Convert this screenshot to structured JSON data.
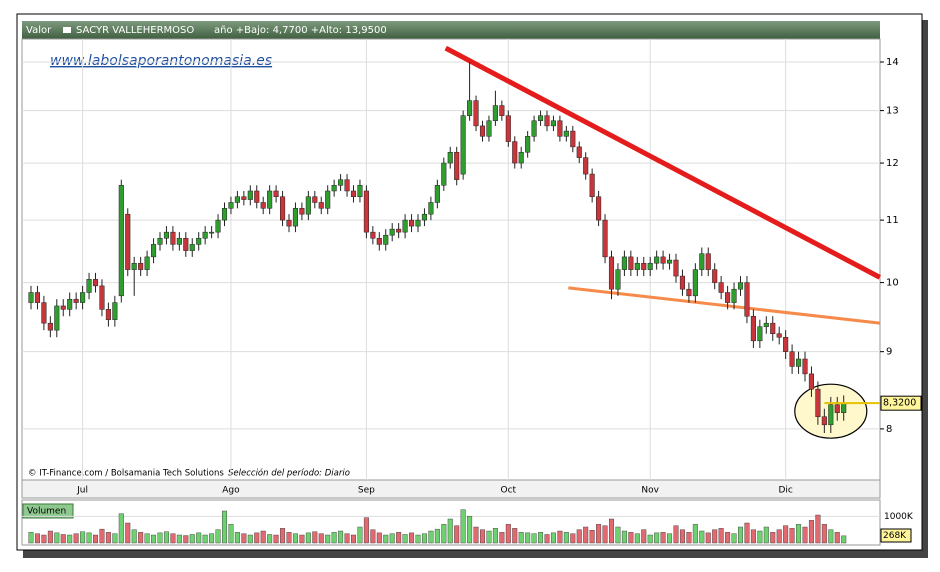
{
  "chart_data": {
    "type": "candlestick",
    "header": {
      "label": "Valor",
      "symbol": "SACYR VALLEHERMOSO",
      "range": "año +Bajo: 4,7700 +Alto: 13,9500"
    },
    "watermark": "www.labolsaporantonomasia.es",
    "credits": "© IT-Finance.com / Bolsamania Tech Solutions",
    "period": "Selección del período: Diario",
    "volume_title": "Volumen",
    "log_scale": true,
    "grid": true,
    "ylim": [
      7.4,
      14.5
    ],
    "yticks": [
      8,
      9,
      10,
      11,
      12,
      13,
      14
    ],
    "volume_lim": [
      0,
      1500
    ],
    "volume_ticks": [
      {
        "value": 1000,
        "label": "1000K"
      }
    ],
    "last_close_label": "8,3200",
    "last_volume_label": "268K",
    "up_color": "#2f9e2f",
    "down_color": "#c8353a",
    "categories": [
      null,
      null,
      null,
      null,
      null,
      null,
      null,
      null,
      "Jul",
      null,
      null,
      null,
      null,
      null,
      null,
      null,
      null,
      null,
      null,
      null,
      null,
      null,
      null,
      null,
      null,
      null,
      null,
      null,
      null,
      null,
      null,
      "Ago",
      null,
      null,
      null,
      null,
      null,
      null,
      null,
      null,
      null,
      null,
      null,
      null,
      null,
      null,
      null,
      null,
      null,
      null,
      null,
      null,
      "Sep",
      null,
      null,
      null,
      null,
      null,
      null,
      null,
      null,
      null,
      null,
      null,
      null,
      null,
      null,
      null,
      null,
      null,
      null,
      null,
      null,
      null,
      "Oct",
      null,
      null,
      null,
      null,
      null,
      null,
      null,
      null,
      null,
      null,
      null,
      null,
      null,
      null,
      null,
      null,
      null,
      null,
      null,
      null,
      null,
      "Nov",
      null,
      null,
      null,
      null,
      null,
      null,
      null,
      null,
      null,
      null,
      null,
      null,
      null,
      null,
      null,
      null,
      null,
      null,
      null,
      null,
      "Dic",
      null,
      null,
      null,
      null,
      null,
      null,
      null,
      null,
      null
    ],
    "open": [
      9.7,
      9.85,
      9.7,
      9.4,
      9.3,
      9.65,
      9.6,
      9.75,
      9.7,
      9.85,
      10.05,
      9.95,
      9.6,
      9.45,
      9.8,
      11.1,
      10.2,
      10.3,
      10.2,
      10.4,
      10.6,
      10.7,
      10.8,
      10.6,
      10.7,
      10.5,
      10.6,
      10.7,
      10.8,
      10.8,
      11.0,
      11.2,
      11.3,
      11.4,
      11.35,
      11.5,
      11.3,
      11.2,
      11.5,
      11.4,
      11.0,
      10.9,
      11.2,
      11.1,
      11.4,
      11.3,
      11.2,
      11.5,
      11.6,
      11.7,
      11.5,
      11.4,
      11.5,
      10.8,
      10.7,
      10.6,
      10.75,
      10.85,
      10.8,
      11.0,
      10.9,
      11.0,
      11.1,
      11.3,
      11.6,
      12.0,
      12.2,
      11.8,
      12.9,
      13.2,
      12.7,
      12.5,
      12.8,
      13.1,
      12.9,
      12.4,
      12.0,
      12.2,
      12.5,
      12.8,
      12.9,
      12.7,
      12.8,
      12.5,
      12.6,
      12.3,
      12.1,
      11.8,
      11.4,
      11.0,
      10.4,
      9.9,
      10.2,
      10.4,
      10.2,
      10.3,
      10.2,
      10.3,
      10.4,
      10.3,
      10.35,
      10.1,
      9.9,
      9.8,
      10.2,
      10.45,
      10.2,
      10.0,
      9.85,
      9.7,
      9.9,
      10.0,
      9.5,
      9.15,
      9.35,
      9.4,
      9.25,
      9.2,
      9.0,
      8.8,
      8.9,
      8.7,
      8.5,
      8.15,
      8.05,
      8.3,
      8.2
    ],
    "high": [
      9.95,
      9.95,
      9.8,
      9.5,
      9.75,
      9.75,
      9.85,
      9.85,
      9.95,
      10.15,
      10.15,
      10.05,
      9.7,
      9.8,
      11.7,
      11.2,
      10.4,
      10.4,
      10.5,
      10.7,
      10.8,
      10.9,
      10.9,
      10.8,
      10.8,
      10.7,
      10.8,
      10.9,
      10.9,
      11.1,
      11.3,
      11.4,
      11.5,
      11.5,
      11.6,
      11.6,
      11.4,
      11.6,
      11.6,
      11.5,
      11.1,
      11.3,
      11.3,
      11.5,
      11.5,
      11.4,
      11.6,
      11.7,
      11.8,
      11.8,
      11.6,
      11.7,
      11.6,
      10.9,
      10.8,
      10.85,
      10.95,
      10.95,
      11.1,
      11.1,
      11.1,
      11.2,
      11.4,
      11.7,
      12.1,
      12.3,
      12.3,
      13.0,
      14.0,
      13.3,
      12.8,
      12.9,
      13.4,
      13.2,
      13.0,
      12.5,
      12.3,
      12.6,
      12.9,
      13.0,
      13.0,
      12.9,
      12.9,
      12.7,
      12.7,
      12.4,
      12.2,
      11.9,
      11.5,
      11.1,
      10.5,
      10.3,
      10.5,
      10.5,
      10.4,
      10.4,
      10.4,
      10.5,
      10.5,
      10.45,
      10.45,
      10.2,
      10.0,
      10.3,
      10.55,
      10.55,
      10.3,
      10.1,
      9.95,
      10.0,
      10.1,
      10.1,
      9.6,
      9.45,
      9.5,
      9.5,
      9.35,
      9.3,
      9.1,
      9.0,
      9.0,
      8.8,
      8.6,
      8.25,
      8.4,
      8.4,
      8.42
    ],
    "low": [
      9.6,
      9.6,
      9.3,
      9.2,
      9.2,
      9.5,
      9.5,
      9.6,
      9.6,
      9.75,
      9.85,
      9.5,
      9.35,
      9.35,
      9.7,
      10.1,
      9.8,
      10.1,
      10.1,
      10.3,
      10.5,
      10.6,
      10.5,
      10.5,
      10.4,
      10.4,
      10.5,
      10.6,
      10.7,
      10.7,
      10.9,
      11.1,
      11.2,
      11.25,
      11.25,
      11.2,
      11.1,
      11.1,
      11.3,
      10.9,
      10.8,
      10.8,
      11.0,
      11.0,
      11.2,
      11.1,
      11.1,
      11.4,
      11.5,
      11.4,
      11.3,
      11.3,
      10.7,
      10.6,
      10.5,
      10.5,
      10.65,
      10.7,
      10.7,
      10.8,
      10.8,
      10.9,
      11.0,
      11.2,
      11.5,
      11.9,
      11.6,
      11.7,
      12.8,
      12.6,
      12.4,
      12.4,
      12.7,
      12.8,
      12.3,
      11.9,
      11.9,
      12.1,
      12.4,
      12.7,
      12.6,
      12.6,
      12.4,
      12.4,
      12.2,
      12.0,
      11.7,
      11.3,
      10.9,
      10.3,
      9.75,
      9.8,
      10.1,
      10.1,
      10.1,
      10.1,
      10.1,
      10.2,
      10.2,
      10.2,
      10.0,
      9.8,
      9.7,
      9.7,
      10.1,
      10.1,
      9.9,
      9.75,
      9.6,
      9.6,
      9.8,
      9.4,
      9.05,
      9.05,
      9.25,
      9.15,
      9.1,
      8.9,
      8.7,
      8.7,
      8.6,
      8.4,
      8.05,
      7.95,
      7.95,
      8.1,
      8.1
    ],
    "close": [
      9.85,
      9.7,
      9.4,
      9.3,
      9.65,
      9.6,
      9.75,
      9.7,
      9.85,
      10.05,
      9.95,
      9.6,
      9.45,
      9.7,
      11.6,
      10.2,
      10.3,
      10.2,
      10.4,
      10.6,
      10.7,
      10.8,
      10.6,
      10.7,
      10.5,
      10.6,
      10.7,
      10.8,
      10.8,
      11.0,
      11.2,
      11.3,
      11.4,
      11.35,
      11.5,
      11.3,
      11.2,
      11.5,
      11.4,
      11.0,
      10.9,
      11.2,
      11.1,
      11.4,
      11.3,
      11.2,
      11.5,
      11.6,
      11.7,
      11.5,
      11.4,
      11.6,
      10.8,
      10.7,
      10.6,
      10.75,
      10.85,
      10.8,
      11.0,
      10.9,
      11.0,
      11.1,
      11.3,
      11.6,
      12.0,
      12.2,
      11.7,
      12.9,
      13.2,
      12.7,
      12.5,
      12.8,
      13.1,
      12.9,
      12.4,
      12.0,
      12.2,
      12.5,
      12.8,
      12.9,
      12.7,
      12.8,
      12.5,
      12.6,
      12.3,
      12.1,
      11.8,
      11.4,
      11.0,
      10.4,
      9.9,
      10.2,
      10.4,
      10.2,
      10.3,
      10.2,
      10.3,
      10.4,
      10.3,
      10.35,
      10.1,
      9.9,
      9.8,
      10.2,
      10.45,
      10.2,
      10.0,
      9.85,
      9.7,
      9.9,
      10.0,
      9.5,
      9.15,
      9.35,
      9.4,
      9.25,
      9.2,
      9.0,
      8.8,
      8.9,
      8.7,
      8.5,
      8.15,
      8.05,
      8.3,
      8.2,
      8.32
    ],
    "volume": [
      400,
      350,
      300,
      450,
      380,
      320,
      300,
      350,
      420,
      380,
      300,
      520,
      400,
      350,
      1100,
      750,
      500,
      400,
      350,
      300,
      380,
      420,
      350,
      300,
      280,
      320,
      380,
      300,
      350,
      500,
      1200,
      700,
      400,
      350,
      300,
      380,
      450,
      320,
      300,
      550,
      400,
      350,
      300,
      380,
      420,
      350,
      300,
      400,
      450,
      350,
      300,
      600,
      950,
      500,
      380,
      300,
      350,
      400,
      320,
      380,
      300,
      350,
      450,
      520,
      700,
      900,
      650,
      1250,
      1000,
      600,
      500,
      450,
      550,
      400,
      700,
      550,
      400,
      380,
      350,
      400,
      320,
      380,
      450,
      400,
      350,
      500,
      600,
      480,
      700,
      650,
      900,
      600,
      450,
      400,
      350,
      500,
      300,
      380,
      400,
      350,
      650,
      500,
      400,
      700,
      450,
      380,
      500,
      550,
      400,
      350,
      600,
      750,
      500,
      450,
      600,
      400,
      500,
      650,
      550,
      700,
      600,
      850,
      1050,
      700,
      500,
      400,
      268
    ],
    "trendlines": [
      {
        "color": "#e41c1c",
        "x": [
          64.3,
          131.6
        ],
        "y": [
          14.3,
          10.08
        ]
      },
      {
        "color": "#f58a4a",
        "x": [
          83.3,
          131.6
        ],
        "y": [
          9.92,
          9.4
        ]
      }
    ]
  }
}
